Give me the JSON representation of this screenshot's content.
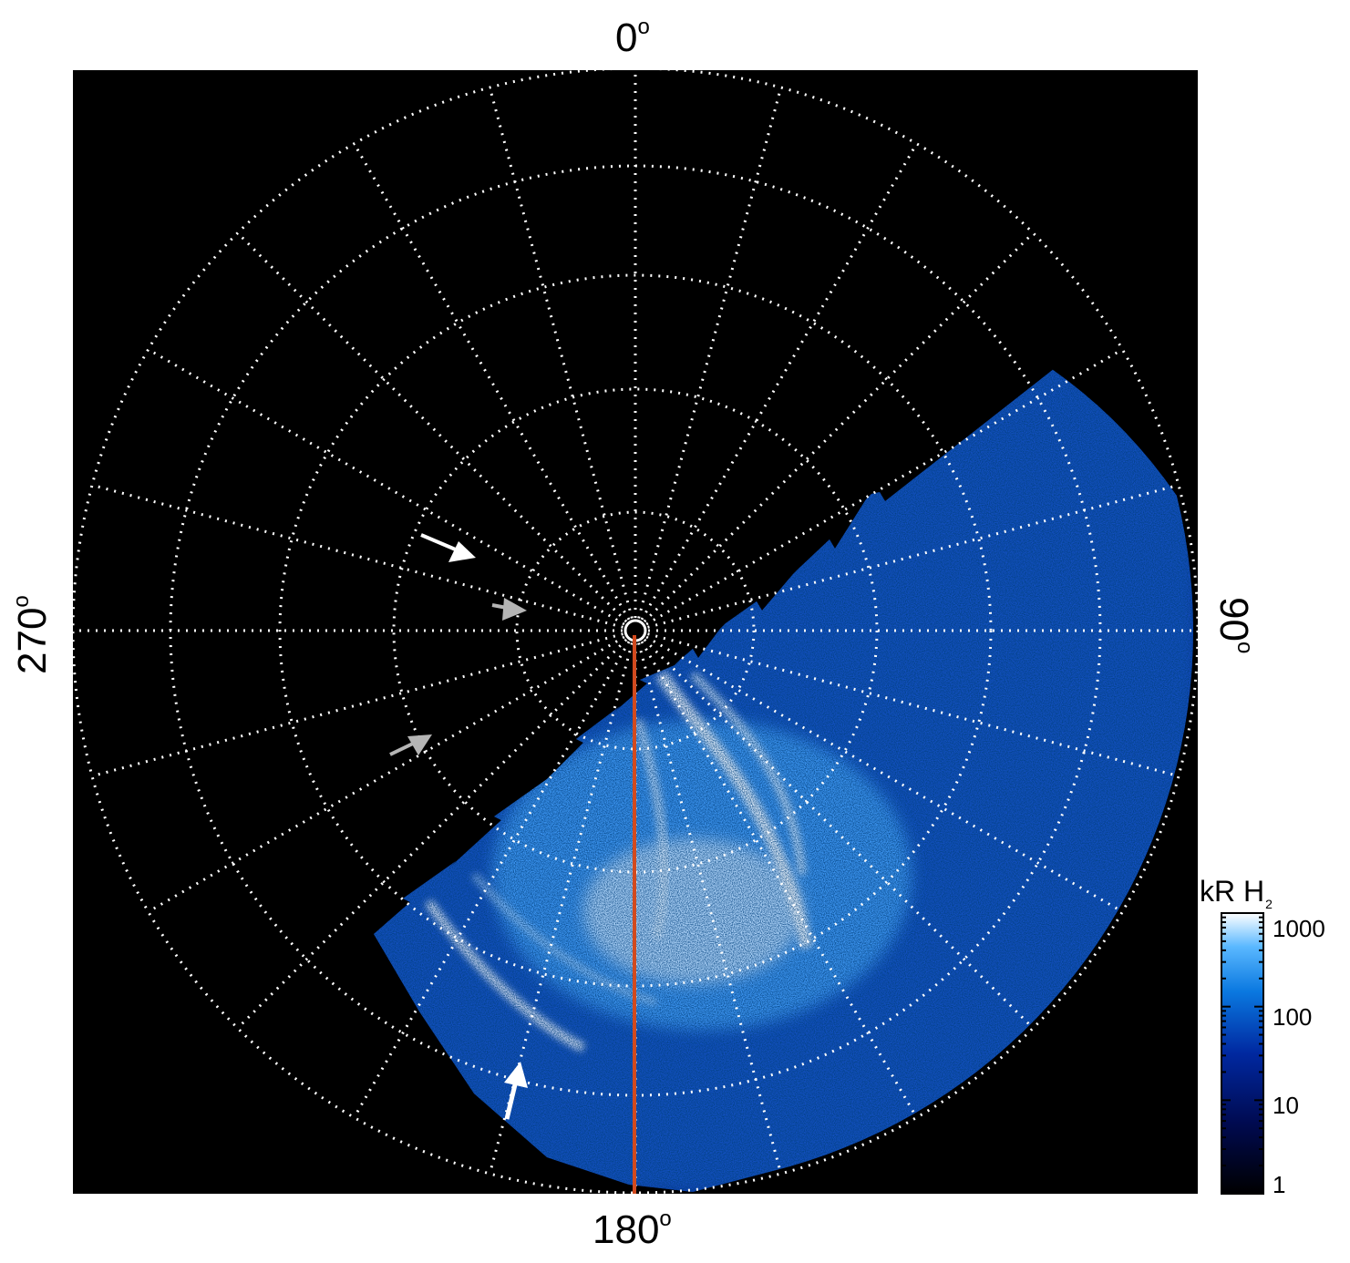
{
  "axes": {
    "top_label": "0",
    "bottom_label": "180",
    "left_label": "270",
    "right_label": "90",
    "degree_symbol": "o"
  },
  "colorbar": {
    "title": "kR H",
    "title_subscript": "2",
    "ticks": [
      "1000",
      "100",
      "10",
      "1"
    ],
    "scale": "log"
  },
  "colors": {
    "background": "#000000",
    "grid": "#ffffff",
    "meridian_line": "#d24a1e",
    "aurora_low": "#0a1f7a",
    "aurora_mid": "#1e90ff",
    "aurora_high": "#ffffff",
    "arrow_white": "#ffffff",
    "arrow_gray": "#b5b5b5"
  },
  "annotations": {
    "arrows": [
      {
        "color": "white",
        "pointing": "down-right"
      },
      {
        "color": "gray",
        "pointing": "right"
      },
      {
        "color": "gray",
        "pointing": "up-right"
      },
      {
        "color": "white",
        "pointing": "up"
      }
    ]
  }
}
